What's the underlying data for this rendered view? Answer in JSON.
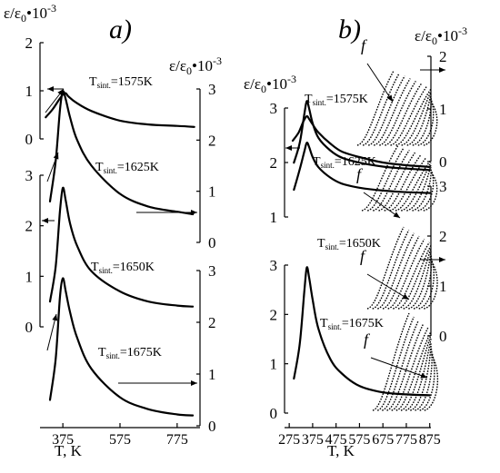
{
  "chart_data": [
    {
      "panel_label": "a)",
      "type": "line",
      "xlabel": "T, K",
      "xlim": [
        295,
        855
      ],
      "x_ticks": [
        375,
        575,
        775
      ],
      "left_axes": [
        {
          "ylabel": "ε/ε0•10-3",
          "ylim": [
            0,
            2
          ],
          "ticks": [
            0,
            1,
            2
          ]
        },
        {
          "ylim": [
            0,
            3
          ],
          "ticks": [
            0,
            1,
            2,
            3
          ]
        }
      ],
      "right_axes": [
        {
          "ylabel": "ε/ε0•10-3",
          "ylim": [
            0,
            3
          ],
          "ticks": [
            0,
            1,
            2,
            3
          ]
        },
        {
          "ylim": [
            0,
            3
          ],
          "ticks": [
            0,
            1,
            2,
            3
          ]
        }
      ],
      "series": [
        {
          "name": "Tsint.=1575K",
          "axis": "left_1",
          "x": [
            315,
            340,
            360,
            375,
            385,
            395,
            420,
            475,
            575,
            675,
            775,
            835
          ],
          "y": [
            0.45,
            0.62,
            0.8,
            0.92,
            0.95,
            0.88,
            0.76,
            0.58,
            0.38,
            0.3,
            0.27,
            0.25
          ]
        },
        {
          "name": "Tsint.=1625K",
          "axis": "right_1",
          "x": [
            330,
            350,
            365,
            375,
            385,
            400,
            425,
            475,
            575,
            675,
            775,
            830
          ],
          "y": [
            0.8,
            1.6,
            2.6,
            2.95,
            2.8,
            2.45,
            2.0,
            1.5,
            0.95,
            0.7,
            0.6,
            0.55
          ]
        },
        {
          "name": "Tsint.=1650K",
          "axis": "left_2",
          "x": [
            330,
            350,
            365,
            375,
            385,
            400,
            425,
            475,
            575,
            675,
            775,
            830
          ],
          "y": [
            0.5,
            1.2,
            2.3,
            2.75,
            2.5,
            2.05,
            1.6,
            1.1,
            0.7,
            0.5,
            0.42,
            0.4
          ]
        },
        {
          "name": "Tsint.=1675K",
          "axis": "right_2",
          "x": [
            330,
            350,
            365,
            375,
            385,
            400,
            425,
            475,
            575,
            675,
            775,
            830
          ],
          "y": [
            0.5,
            1.3,
            2.5,
            2.85,
            2.6,
            2.2,
            1.7,
            1.1,
            0.55,
            0.32,
            0.22,
            0.2
          ]
        }
      ]
    },
    {
      "panel_label": "b)",
      "type": "line",
      "xlabel": "T, K",
      "xlim": [
        255,
        880
      ],
      "x_ticks": [
        275,
        375,
        475,
        575,
        675,
        775,
        875
      ],
      "left_axes": [
        {
          "ylabel": "ε/ε0•10-3",
          "ylim": [
            0,
            3
          ],
          "ticks": [
            1,
            2,
            3
          ]
        },
        {
          "ylim": [
            0,
            3
          ],
          "ticks": [
            0,
            1,
            2,
            3
          ]
        }
      ],
      "right_axes": [
        {
          "ylabel": "ε/ε0•10-3",
          "ylim": [
            0,
            2
          ],
          "ticks": [
            0,
            1,
            2
          ]
        },
        {
          "ylim": [
            0,
            3
          ],
          "ticks": [
            0,
            1,
            2,
            3
          ]
        }
      ],
      "annotation": "f",
      "series": [
        {
          "name": "Tsint.=1575K",
          "axis": "left_1",
          "x": [
            290,
            315,
            335,
            350,
            360,
            375,
            400,
            450,
            500,
            575,
            675,
            775,
            875
          ],
          "y": [
            2.4,
            2.55,
            2.75,
            2.85,
            2.8,
            2.7,
            2.55,
            2.35,
            2.2,
            2.1,
            2.0,
            1.95,
            1.92
          ]
        },
        {
          "name": "Tsint.=1625K",
          "axis": "right_1",
          "x": [
            295,
            320,
            340,
            350,
            360,
            375,
            400,
            450,
            500,
            575,
            675,
            775,
            875
          ],
          "y": [
            0.8,
            1.3,
            1.75,
            1.95,
            1.85,
            1.6,
            1.35,
            1.1,
            0.95,
            0.85,
            0.78,
            0.74,
            0.72
          ]
        },
        {
          "name": "Tsint.=1650K",
          "axis": "left_2",
          "x": [
            295,
            320,
            340,
            350,
            360,
            375,
            400,
            450,
            500,
            575,
            675,
            775,
            875
          ],
          "y": [
            2.5,
            2.9,
            3.5,
            3.75,
            3.6,
            3.3,
            3.0,
            2.75,
            2.6,
            2.5,
            2.42,
            2.38,
            2.35
          ]
        },
        {
          "name": "Tsint.=1675K",
          "axis": "left_2",
          "x": [
            295,
            320,
            340,
            350,
            360,
            375,
            400,
            450,
            500,
            575,
            675,
            775,
            875
          ],
          "y": [
            0.7,
            1.4,
            2.5,
            2.95,
            2.75,
            2.3,
            1.7,
            1.1,
            0.8,
            0.55,
            0.42,
            0.38,
            0.36
          ]
        }
      ]
    }
  ]
}
